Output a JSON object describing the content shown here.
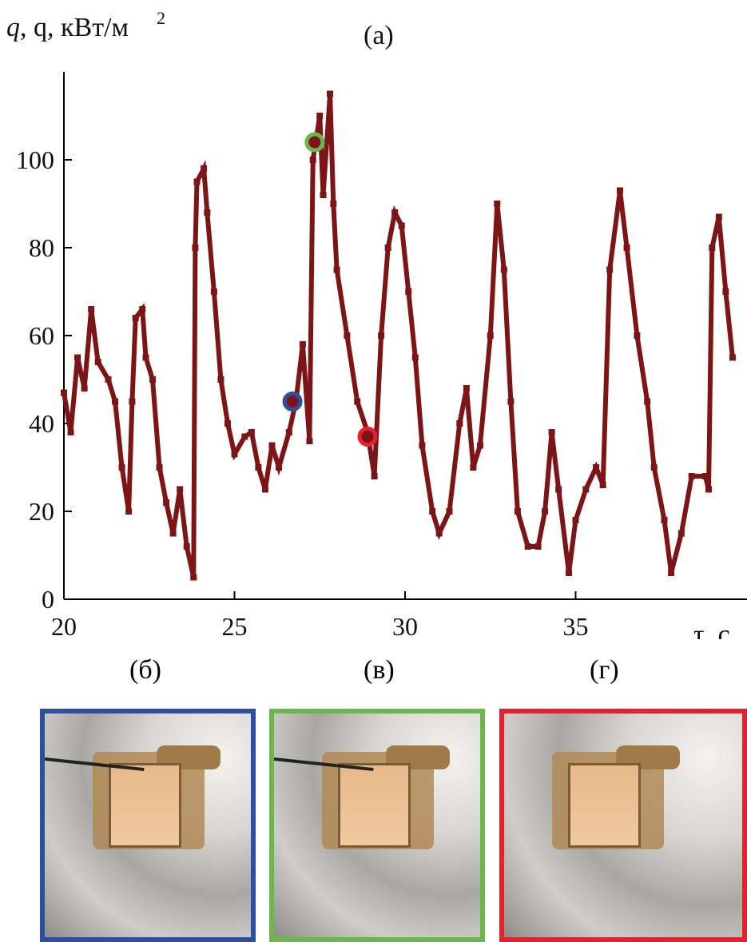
{
  "chart_data": {
    "type": "line",
    "title": "(а)",
    "ylabel": "q, кВт/м",
    "ylabel_sup": "2",
    "xlabel": "τ, с",
    "xlim": [
      20,
      40
    ],
    "ylim": [
      0,
      120
    ],
    "x_ticks": [
      "20",
      "25",
      "30",
      "35"
    ],
    "y_ticks": [
      "0",
      "20",
      "40",
      "60",
      "80",
      "100"
    ],
    "grid": false,
    "line_color": "#7d1416",
    "series": [
      {
        "name": "q",
        "points": [
          [
            20.0,
            47
          ],
          [
            20.2,
            38
          ],
          [
            20.4,
            55
          ],
          [
            20.6,
            48
          ],
          [
            20.8,
            66
          ],
          [
            21.0,
            54
          ],
          [
            21.3,
            50
          ],
          [
            21.5,
            45
          ],
          [
            21.7,
            30
          ],
          [
            21.9,
            20
          ],
          [
            22.0,
            45
          ],
          [
            22.1,
            64
          ],
          [
            22.3,
            66
          ],
          [
            22.4,
            55
          ],
          [
            22.6,
            50
          ],
          [
            22.8,
            30
          ],
          [
            23.0,
            22
          ],
          [
            23.2,
            15
          ],
          [
            23.4,
            25
          ],
          [
            23.6,
            12
          ],
          [
            23.8,
            5
          ],
          [
            23.85,
            80
          ],
          [
            23.9,
            95
          ],
          [
            24.1,
            98
          ],
          [
            24.2,
            88
          ],
          [
            24.4,
            70
          ],
          [
            24.6,
            50
          ],
          [
            24.8,
            40
          ],
          [
            25.0,
            33
          ],
          [
            25.3,
            37
          ],
          [
            25.5,
            38
          ],
          [
            25.7,
            30
          ],
          [
            25.9,
            25
          ],
          [
            26.1,
            35
          ],
          [
            26.3,
            30
          ],
          [
            26.6,
            38
          ],
          [
            26.8,
            45
          ],
          [
            27.0,
            58
          ],
          [
            27.2,
            36
          ],
          [
            27.3,
            100
          ],
          [
            27.5,
            110
          ],
          [
            27.6,
            92
          ],
          [
            27.8,
            115
          ],
          [
            27.9,
            90
          ],
          [
            28.0,
            75
          ],
          [
            28.3,
            60
          ],
          [
            28.6,
            45
          ],
          [
            28.9,
            38
          ],
          [
            29.1,
            28
          ],
          [
            29.3,
            60
          ],
          [
            29.5,
            80
          ],
          [
            29.7,
            88
          ],
          [
            29.9,
            85
          ],
          [
            30.1,
            70
          ],
          [
            30.3,
            55
          ],
          [
            30.5,
            35
          ],
          [
            30.8,
            20
          ],
          [
            31.0,
            15
          ],
          [
            31.3,
            20
          ],
          [
            31.6,
            40
          ],
          [
            31.8,
            48
          ],
          [
            32.0,
            30
          ],
          [
            32.2,
            35
          ],
          [
            32.5,
            60
          ],
          [
            32.7,
            90
          ],
          [
            32.9,
            75
          ],
          [
            33.1,
            45
          ],
          [
            33.3,
            20
          ],
          [
            33.6,
            12
          ],
          [
            33.9,
            12
          ],
          [
            34.1,
            20
          ],
          [
            34.3,
            38
          ],
          [
            34.5,
            25
          ],
          [
            34.8,
            6
          ],
          [
            35.0,
            18
          ],
          [
            35.3,
            25
          ],
          [
            35.6,
            30
          ],
          [
            35.8,
            26
          ],
          [
            36.0,
            75
          ],
          [
            36.3,
            93
          ],
          [
            36.5,
            80
          ],
          [
            36.8,
            60
          ],
          [
            37.1,
            45
          ],
          [
            37.3,
            30
          ],
          [
            37.6,
            18
          ],
          [
            37.8,
            6
          ],
          [
            38.1,
            15
          ],
          [
            38.4,
            28
          ],
          [
            38.8,
            28
          ],
          [
            38.9,
            25
          ],
          [
            39.0,
            80
          ],
          [
            39.2,
            87
          ],
          [
            39.4,
            70
          ],
          [
            39.6,
            55
          ]
        ]
      }
    ],
    "markers": [
      {
        "name": "б",
        "x": 26.7,
        "y": 45,
        "color": "#2e4fa0"
      },
      {
        "name": "в",
        "x": 27.35,
        "y": 104,
        "color": "#6ab84a"
      },
      {
        "name": "г",
        "x": 28.9,
        "y": 37,
        "color": "#e8202a"
      }
    ]
  },
  "photos": [
    {
      "label": "(б)",
      "color": "#2e4fa0",
      "needle": true
    },
    {
      "label": "(в)",
      "color": "#6ab84a",
      "needle": true
    },
    {
      "label": "(г)",
      "color": "#e8202a",
      "needle": false
    }
  ]
}
